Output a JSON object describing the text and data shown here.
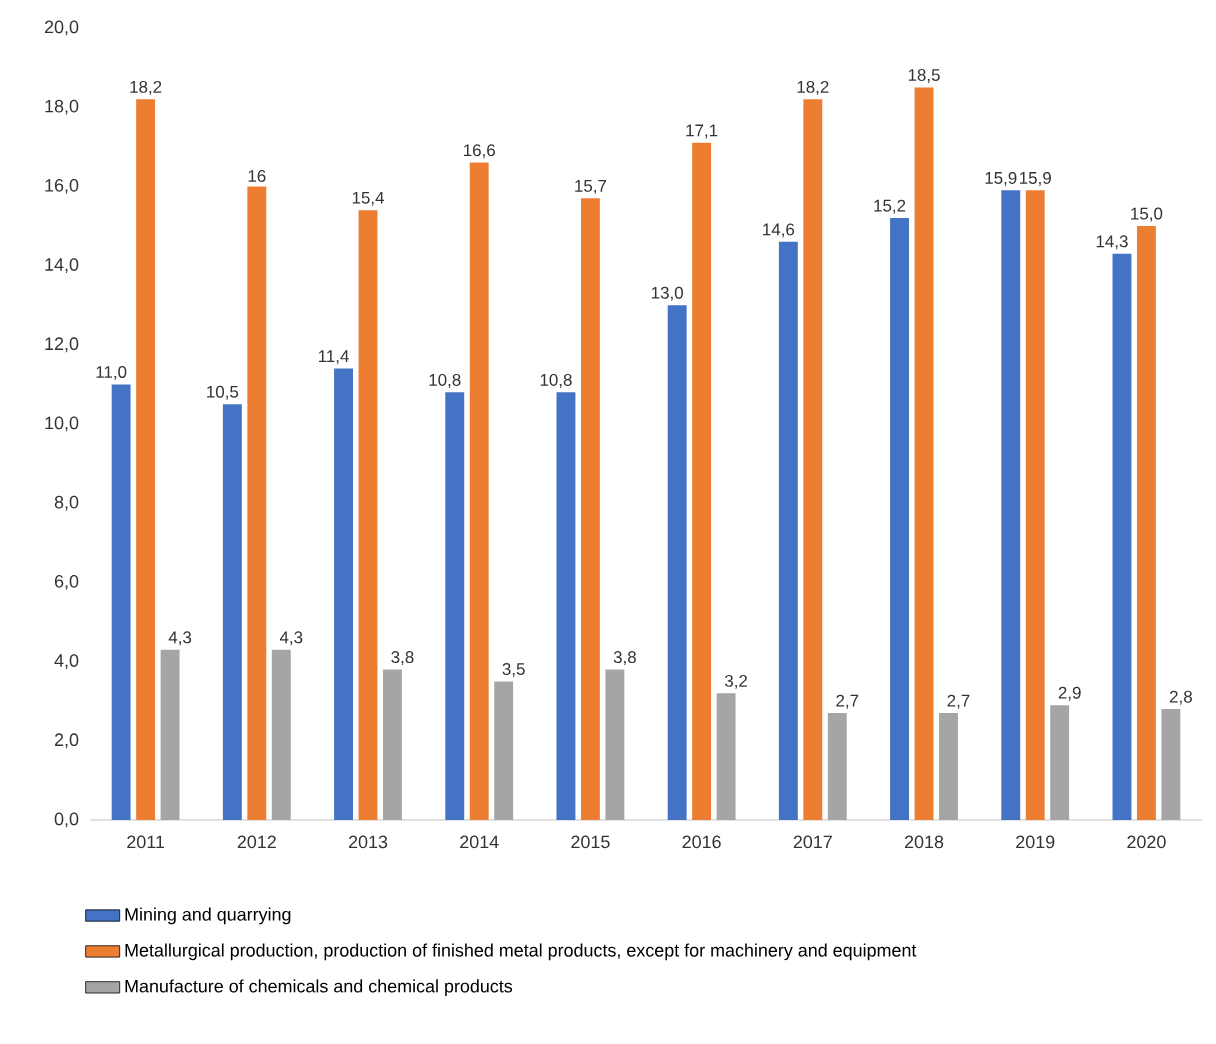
{
  "chart_data": {
    "type": "bar",
    "categories": [
      "2011",
      "2012",
      "2013",
      "2014",
      "2015",
      "2016",
      "2017",
      "2018",
      "2019",
      "2020"
    ],
    "series": [
      {
        "name": "Mining and quarrying",
        "color": "#4472c4",
        "values": [
          11.0,
          10.5,
          11.4,
          10.8,
          10.8,
          13.0,
          14.6,
          15.2,
          15.9,
          14.3
        ],
        "value_labels": [
          "11,0",
          "10,5",
          "11,4",
          "10,8",
          "10,8",
          "13,0",
          "14,6",
          "15,2",
          "15,9",
          "14,3"
        ]
      },
      {
        "name": "Metallurgical production, production of finished metal products, except for machinery and equipment",
        "color": "#ed7d31",
        "values": [
          18.2,
          16,
          15.4,
          16.6,
          15.7,
          17.1,
          18.2,
          18.5,
          15.9,
          15.0
        ],
        "value_labels": [
          "18,2",
          "16",
          "15,4",
          "16,6",
          "15,7",
          "17,1",
          "18,2",
          "18,5",
          "15,9",
          "15,0"
        ]
      },
      {
        "name": "Manufacture of chemicals and chemical products",
        "color": "#a5a5a5",
        "values": [
          4.3,
          4.3,
          3.8,
          3.5,
          3.8,
          3.2,
          2.7,
          2.7,
          2.9,
          2.8
        ],
        "value_labels": [
          "4,3",
          "4,3",
          "3,8",
          "3,5",
          "3,8",
          "3,2",
          "2,7",
          "2,7",
          "2,9",
          "2,8"
        ]
      }
    ],
    "ylim": [
      0,
      20
    ],
    "yticks": [
      {
        "value": 0,
        "label": "0,0"
      },
      {
        "value": 2,
        "label": "2,0"
      },
      {
        "value": 4,
        "label": "4,0"
      },
      {
        "value": 6,
        "label": "6,0"
      },
      {
        "value": 8,
        "label": "8,0"
      },
      {
        "value": 10,
        "label": "10,0"
      },
      {
        "value": 12,
        "label": "12,0"
      },
      {
        "value": 14,
        "label": "14,0"
      },
      {
        "value": 16,
        "label": "16,0"
      },
      {
        "value": 18,
        "label": "18,0"
      },
      {
        "value": 20,
        "label": "20,0"
      }
    ],
    "legend": "bottom"
  }
}
